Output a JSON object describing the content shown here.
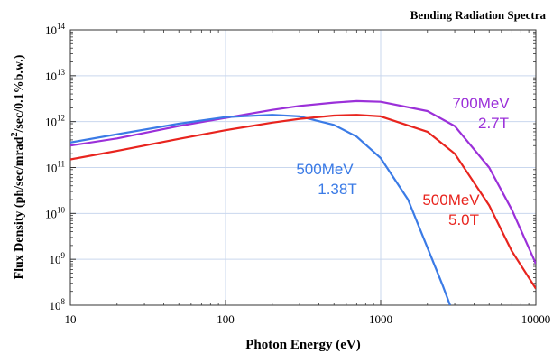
{
  "chart_data": {
    "type": "line",
    "title": "Bending Radiation Spectra",
    "xlabel": "Photon Energy (eV)",
    "ylabel": "Flux Density (ph/sec/mrad",
    "ylabel_sup": "2",
    "ylabel_tail": "/sec/0.1%b.w.)",
    "x_scale": "log",
    "y_scale": "log",
    "xlim": [
      10,
      10000
    ],
    "ylim": [
      100000000,
      100000000000000
    ],
    "grid": true,
    "x_ticks": [
      {
        "value": 10,
        "label": "10"
      },
      {
        "value": 100,
        "label": "100"
      },
      {
        "value": 1000,
        "label": "1000"
      },
      {
        "value": 10000,
        "label": "10000"
      }
    ],
    "y_ticks": [
      {
        "value": 100000000,
        "base": "10",
        "exp": "8"
      },
      {
        "value": 1000000000,
        "base": "10",
        "exp": "9"
      },
      {
        "value": 10000000000,
        "base": "10",
        "exp": "10"
      },
      {
        "value": 100000000000,
        "base": "10",
        "exp": "11"
      },
      {
        "value": 1000000000000,
        "base": "10",
        "exp": "12"
      },
      {
        "value": 10000000000000,
        "base": "10",
        "exp": "13"
      },
      {
        "value": 100000000000000,
        "base": "10",
        "exp": "14"
      }
    ],
    "series": [
      {
        "label_lines": [
          "700MeV",
          "2.7T"
        ],
        "color": "#9b30d9",
        "x": [
          10,
          20,
          50,
          100,
          200,
          300,
          500,
          700,
          1000,
          2000,
          3000,
          5000,
          7000,
          10000
        ],
        "y": [
          300000000000.0,
          430000000000.0,
          800000000000.0,
          1200000000000.0,
          1800000000000.0,
          2200000000000.0,
          2600000000000.0,
          2800000000000.0,
          2700000000000.0,
          1700000000000.0,
          800000000000.0,
          100000000000.0,
          12000000000.0,
          800000000.0
        ]
      },
      {
        "label_lines": [
          "500MeV",
          "1.38T"
        ],
        "color": "#3b7be6",
        "x": [
          10,
          20,
          50,
          100,
          200,
          300,
          500,
          700,
          1000,
          1500,
          2000,
          2500,
          2800
        ],
        "y": [
          350000000000.0,
          530000000000.0,
          900000000000.0,
          1250000000000.0,
          1400000000000.0,
          1300000000000.0,
          850000000000.0,
          470000000000.0,
          160000000000.0,
          20000000000.0,
          1800000000.0,
          280000000.0,
          100000000.0
        ]
      },
      {
        "label_lines": [
          "500MeV",
          "5.0T"
        ],
        "color": "#e8241e",
        "x": [
          10,
          20,
          50,
          100,
          200,
          300,
          500,
          700,
          1000,
          2000,
          3000,
          5000,
          7000,
          10000
        ],
        "y": [
          150000000000.0,
          230000000000.0,
          420000000000.0,
          650000000000.0,
          950000000000.0,
          1150000000000.0,
          1350000000000.0,
          1400000000000.0,
          1300000000000.0,
          600000000000.0,
          200000000000.0,
          15000000000.0,
          1500000000.0,
          230000000.0
        ]
      }
    ]
  }
}
